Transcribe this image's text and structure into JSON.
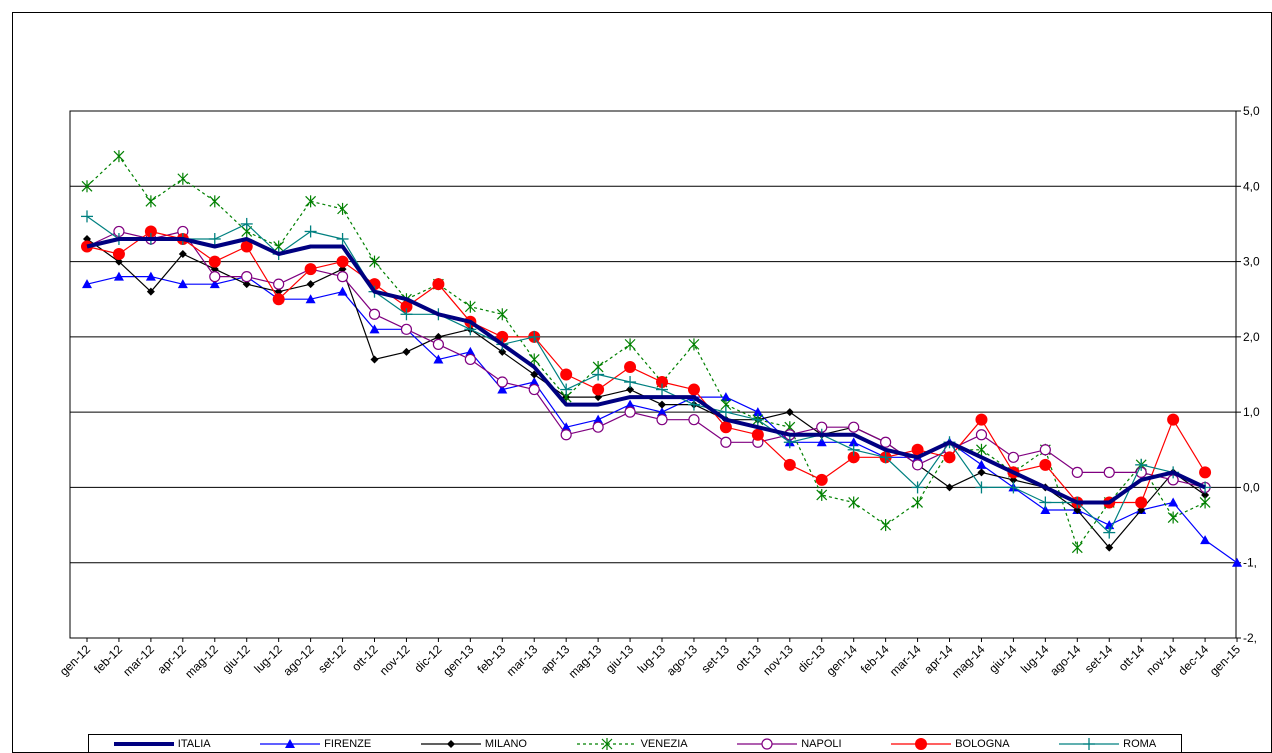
{
  "chart_data": {
    "type": "line",
    "title": "",
    "xlabel": "",
    "ylabel": "",
    "ylim": [
      -2,
      5
    ],
    "ytick_labels": [
      "-2,",
      "-1,",
      "0,0",
      "1,0",
      "2,0",
      "3,0",
      "4,0",
      "5,0"
    ],
    "yticks": [
      -2,
      -1,
      0,
      1,
      2,
      3,
      4,
      5
    ],
    "grid": true,
    "legend_position": "bottom",
    "categories": [
      "gen-12",
      "feb-12",
      "mar-12",
      "apr-12",
      "mag-12",
      "giu-12",
      "lug-12",
      "ago-12",
      "set-12",
      "ott-12",
      "nov-12",
      "dic-12",
      "gen-13",
      "feb-13",
      "mar-13",
      "apr-13",
      "mag-13",
      "giu-13",
      "lug-13",
      "ago-13",
      "set-13",
      "ott-13",
      "nov-13",
      "dic-13",
      "gen-14",
      "feb-14",
      "mar-14",
      "apr-14",
      "mag-14",
      "giu-14",
      "lug-14",
      "ago-14",
      "set-14",
      "ott-14",
      "nov-14",
      "dec-14",
      "gen-15"
    ],
    "series": [
      {
        "name": "ITALIA",
        "color": "#000080",
        "marker": "none",
        "dash": "",
        "width": 4,
        "values": [
          3.2,
          3.3,
          3.3,
          3.3,
          3.2,
          3.3,
          3.1,
          3.2,
          3.2,
          2.6,
          2.5,
          2.3,
          2.2,
          1.9,
          1.6,
          1.1,
          1.1,
          1.2,
          1.2,
          1.2,
          0.9,
          0.8,
          0.7,
          0.7,
          0.7,
          0.5,
          0.4,
          0.6,
          0.4,
          0.2,
          0.0,
          -0.2,
          -0.2,
          0.1,
          0.2,
          0.0,
          null
        ]
      },
      {
        "name": "FIRENZE",
        "color": "#0000ff",
        "marker": "triangle",
        "dash": "",
        "width": 1.2,
        "values": [
          2.7,
          2.8,
          2.8,
          2.7,
          2.7,
          2.8,
          2.5,
          2.5,
          2.6,
          2.1,
          2.1,
          1.7,
          1.8,
          1.3,
          1.4,
          0.8,
          0.9,
          1.1,
          1.0,
          1.2,
          1.2,
          1.0,
          0.6,
          0.6,
          0.6,
          0.4,
          0.4,
          0.6,
          0.3,
          0.0,
          -0.3,
          -0.3,
          -0.5,
          -0.3,
          -0.2,
          -0.7,
          -1.0
        ]
      },
      {
        "name": "MILANO",
        "color": "#000000",
        "marker": "diamond",
        "dash": "",
        "width": 1.2,
        "values": [
          3.3,
          3.0,
          2.6,
          3.1,
          2.9,
          2.7,
          2.6,
          2.7,
          2.9,
          1.7,
          1.8,
          2.0,
          2.1,
          1.8,
          1.5,
          1.2,
          1.2,
          1.3,
          1.1,
          1.1,
          0.9,
          0.9,
          1.0,
          0.7,
          0.8,
          0.6,
          0.3,
          0.0,
          0.2,
          0.1,
          0.0,
          -0.3,
          -0.8,
          -0.3,
          0.2,
          -0.1,
          null
        ]
      },
      {
        "name": "VENEZIA",
        "color": "#008000",
        "marker": "star",
        "dash": "3,3",
        "width": 1.2,
        "values": [
          4.0,
          4.4,
          3.8,
          4.1,
          3.8,
          3.4,
          3.2,
          3.8,
          3.7,
          3.0,
          2.5,
          2.7,
          2.4,
          2.3,
          1.7,
          1.2,
          1.6,
          1.9,
          1.4,
          1.9,
          1.1,
          0.9,
          0.8,
          -0.1,
          -0.2,
          -0.5,
          -0.2,
          0.5,
          0.5,
          0.2,
          0.5,
          -0.8,
          -0.2,
          0.3,
          -0.4,
          -0.2,
          null
        ]
      },
      {
        "name": "NAPOLI",
        "color": "#800080",
        "marker": "circle-open",
        "dash": "",
        "width": 1.2,
        "values": [
          3.2,
          3.4,
          3.3,
          3.4,
          2.8,
          2.8,
          2.7,
          2.9,
          2.8,
          2.3,
          2.1,
          1.9,
          1.7,
          1.4,
          1.3,
          0.7,
          0.8,
          1.0,
          0.9,
          0.9,
          0.6,
          0.6,
          0.7,
          0.8,
          0.8,
          0.6,
          0.3,
          0.5,
          0.7,
          0.4,
          0.5,
          0.2,
          0.2,
          0.2,
          0.1,
          0.0,
          null
        ]
      },
      {
        "name": "BOLOGNA",
        "color": "#ff0000",
        "marker": "circle-filled",
        "dash": "",
        "width": 1.2,
        "values": [
          3.2,
          3.1,
          3.4,
          3.3,
          3.0,
          3.2,
          2.5,
          2.9,
          3.0,
          2.7,
          2.4,
          2.7,
          2.2,
          2.0,
          2.0,
          1.5,
          1.3,
          1.6,
          1.4,
          1.3,
          0.8,
          0.7,
          0.3,
          0.1,
          0.4,
          0.4,
          0.5,
          0.4,
          0.9,
          0.2,
          0.3,
          -0.2,
          -0.2,
          -0.2,
          0.9,
          0.2,
          null
        ]
      },
      {
        "name": "ROMA",
        "color": "#008080",
        "marker": "plus",
        "dash": "",
        "width": 1.2,
        "values": [
          3.6,
          3.3,
          3.3,
          3.3,
          3.3,
          3.5,
          3.1,
          3.4,
          3.3,
          2.6,
          2.3,
          2.3,
          2.1,
          1.9,
          2.0,
          1.3,
          1.5,
          1.4,
          1.3,
          1.1,
          1.0,
          0.9,
          0.6,
          0.7,
          0.5,
          0.4,
          0.0,
          0.6,
          0.0,
          0.0,
          -0.2,
          -0.2,
          -0.6,
          0.3,
          0.2,
          0.0,
          null
        ]
      }
    ]
  }
}
